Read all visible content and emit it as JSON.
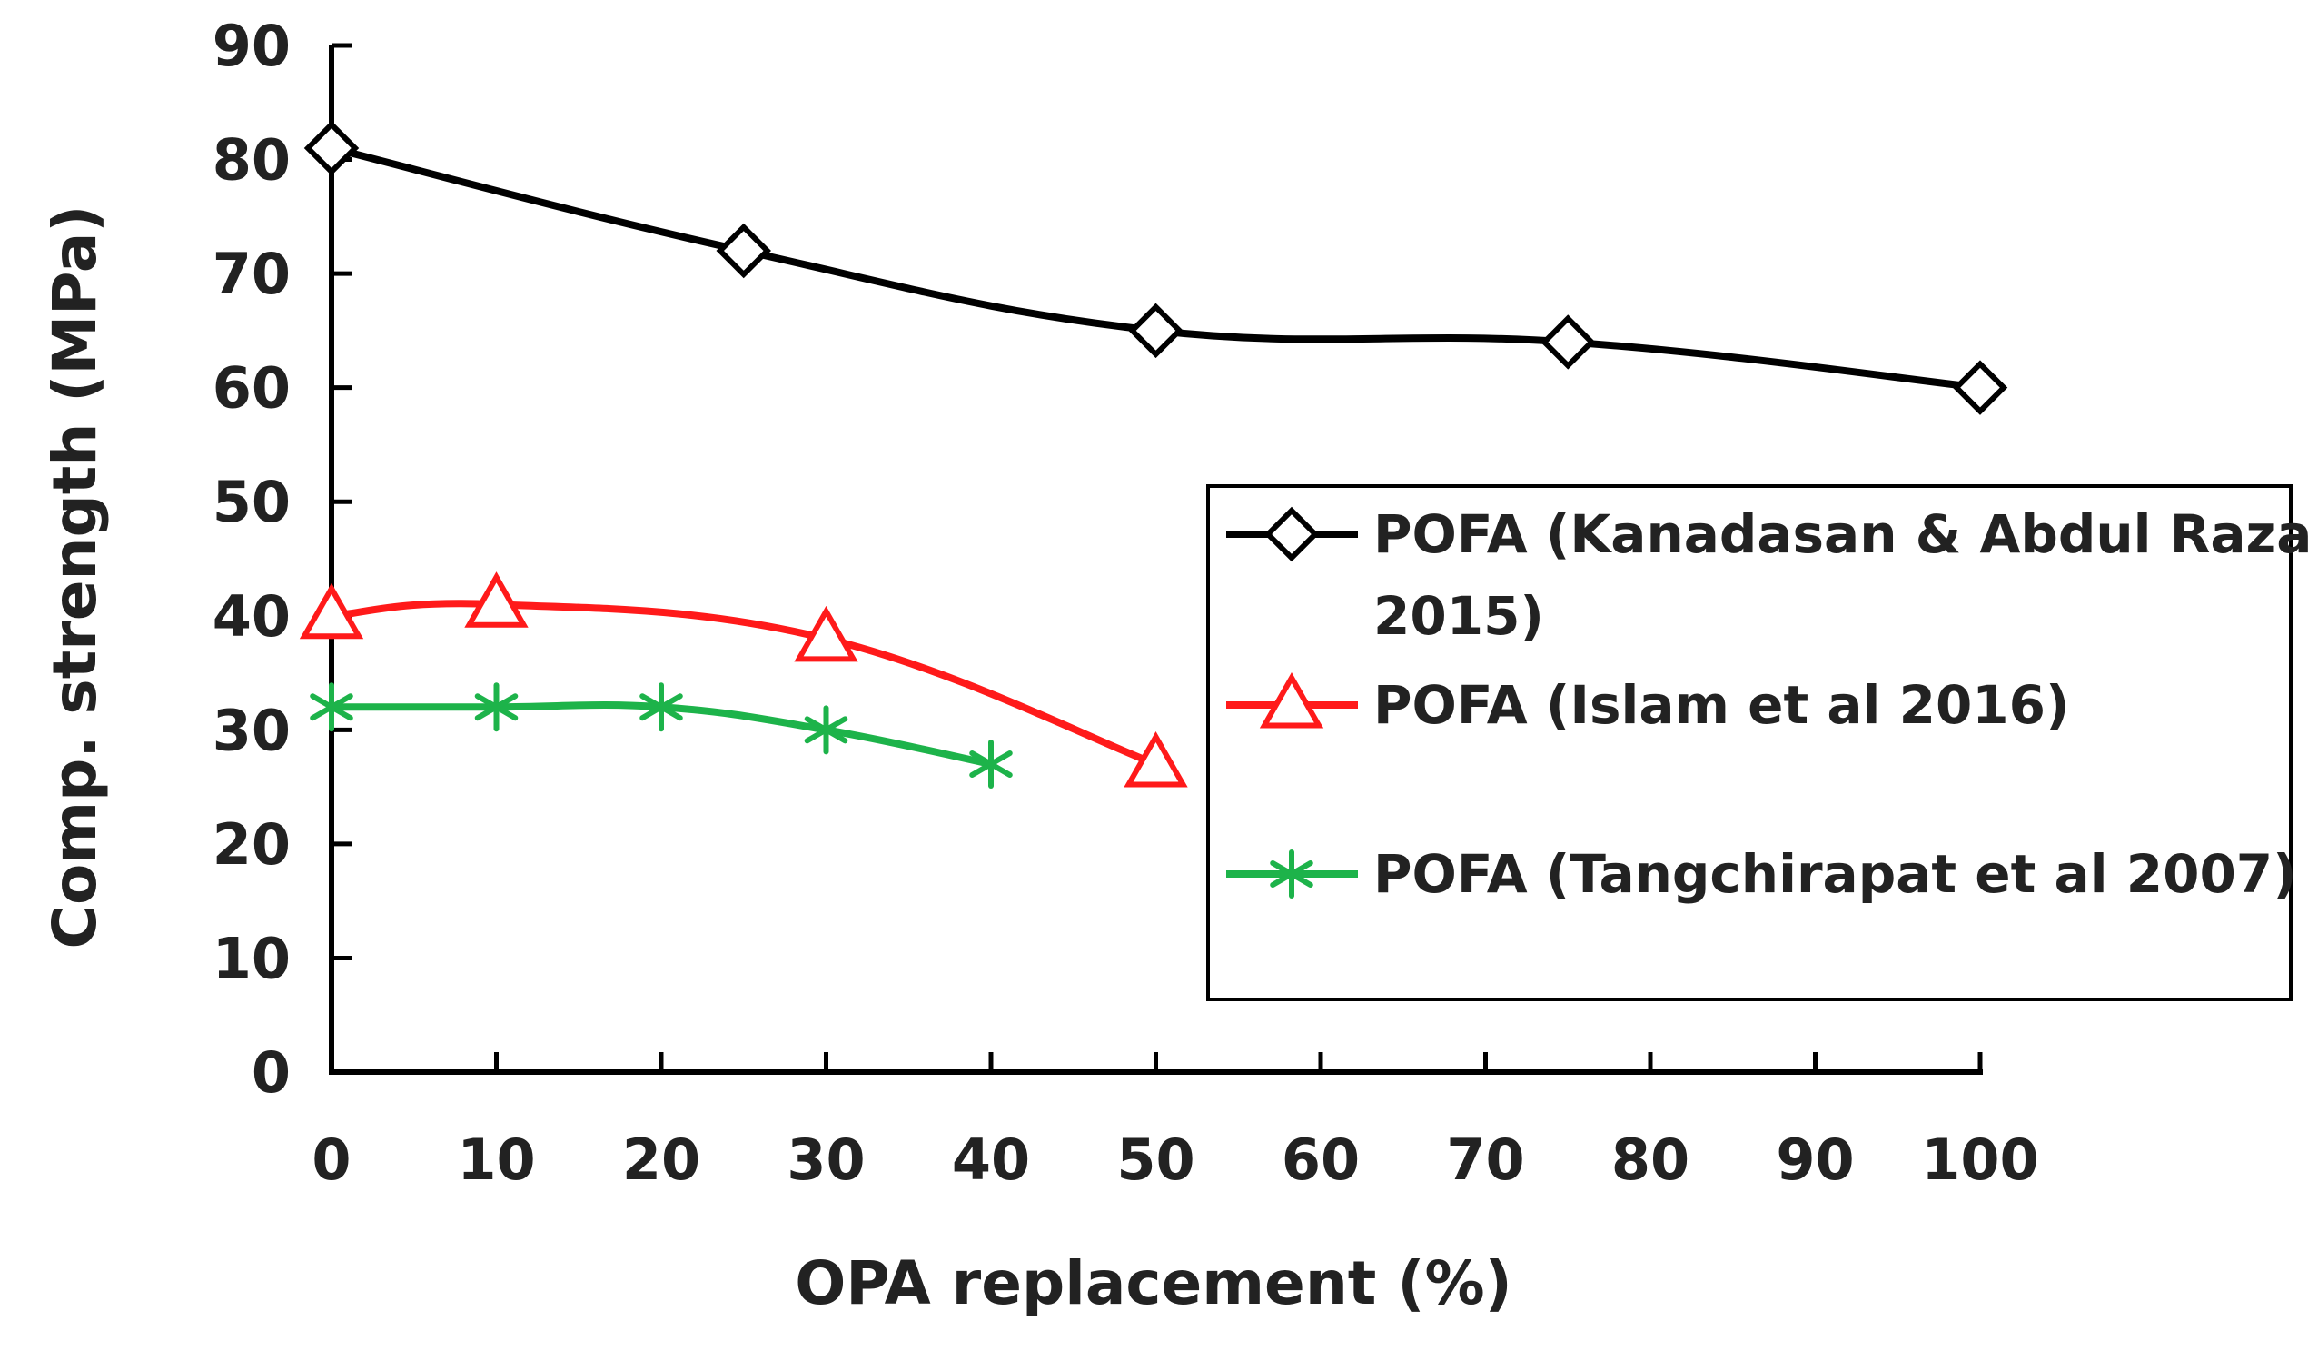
{
  "chart_data": {
    "type": "line",
    "xlabel": "OPA replacement (%)",
    "ylabel": "Comp. strength (MPa)",
    "xlim": [
      0,
      100
    ],
    "ylim": [
      0,
      90
    ],
    "x_ticks": [
      0,
      10,
      20,
      30,
      40,
      50,
      60,
      70,
      80,
      90,
      100
    ],
    "y_ticks": [
      0,
      10,
      20,
      30,
      40,
      50,
      60,
      70,
      80,
      90
    ],
    "grid": false,
    "legend_position": "right",
    "series": [
      {
        "name_lines": [
          "POFA (Kanadasan & Abdul Razak",
          "2015)"
        ],
        "color": "#000000",
        "marker": "diamond",
        "x": [
          0,
          25,
          50,
          75,
          100
        ],
        "y": [
          81,
          72,
          65,
          64,
          60
        ]
      },
      {
        "name_lines": [
          "POFA (Islam et al 2016)"
        ],
        "color": "#ff1a1a",
        "marker": "triangle",
        "x": [
          0,
          10,
          30,
          50
        ],
        "y": [
          40,
          41,
          38,
          27
        ]
      },
      {
        "name_lines": [
          "POFA (Tangchirapat et al 2007)"
        ],
        "color": "#1db34a",
        "marker": "asterisk",
        "x": [
          0,
          10,
          20,
          30,
          40
        ],
        "y": [
          32,
          32,
          32,
          30,
          27
        ]
      }
    ]
  }
}
